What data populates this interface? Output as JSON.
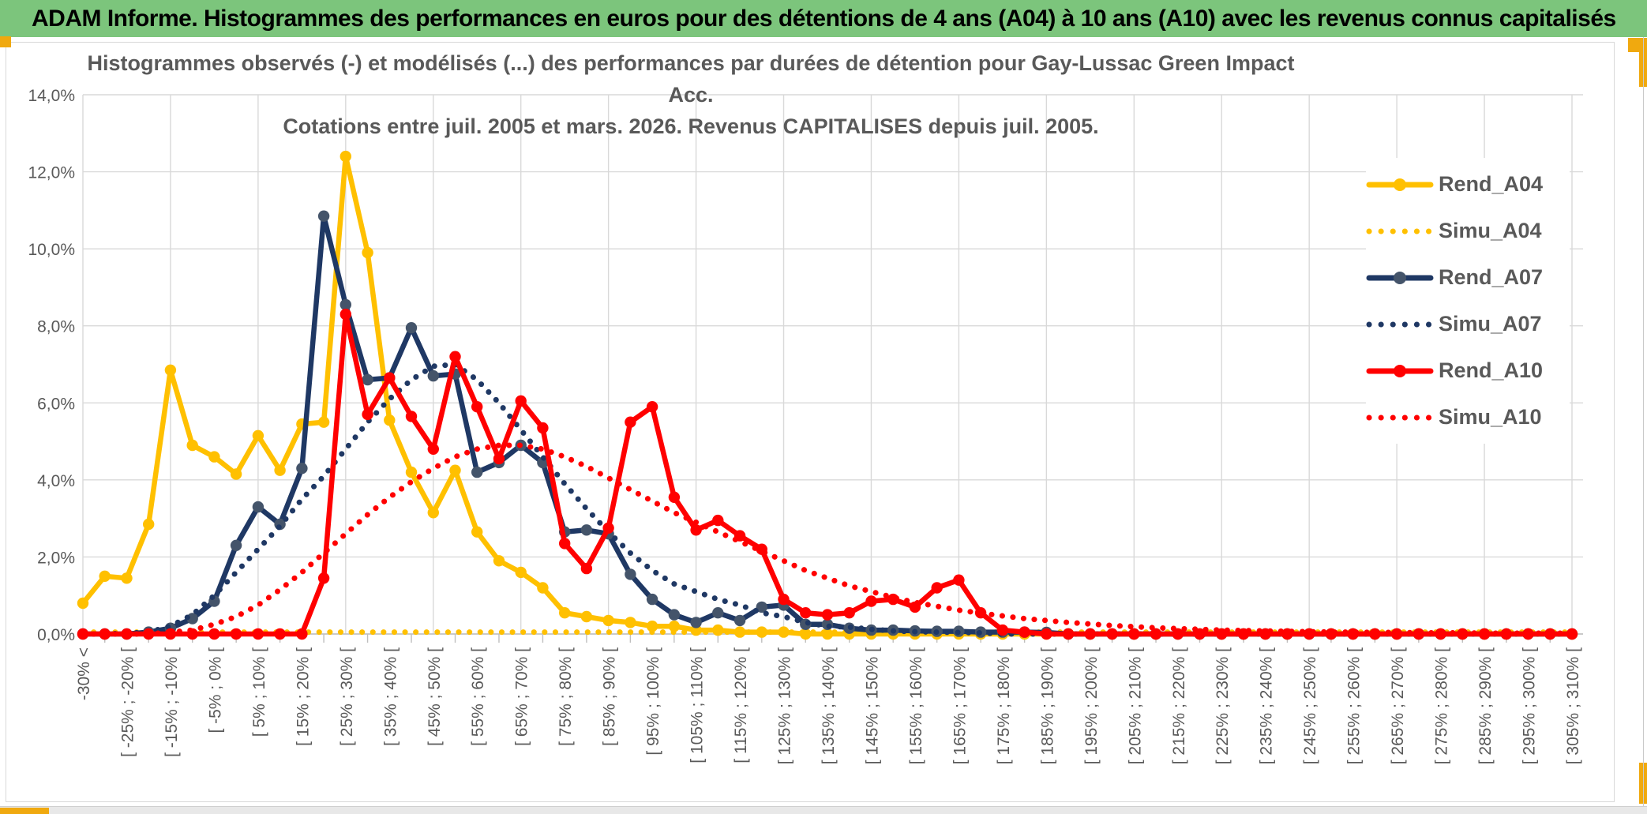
{
  "colors": {
    "header_bg": "#7CC57C",
    "header_text": "#000000",
    "title_text": "#595959",
    "axis_text": "#595959",
    "gridline": "#D9D9D9",
    "axis_line": "#BFBFBF",
    "gold": "#FFC000",
    "navy": "#1F3864",
    "navy_marker": "#44546A",
    "red": "#FF0000",
    "selection_accent": "#F0A90F"
  },
  "header": {
    "title": "ADAM Informe. Histogrammes des performances en euros pour des détentions de 4 ans (A04) à 10 ans (A10) avec les revenus connus capitalisés"
  },
  "chart": {
    "title_line1": "Histogrammes observés (-) et modélisés (...) des performances par durées de détention pour Gay-Lussac Green Impact Acc.",
    "title_line2": "Cotations entre juil. 2005 et mars. 2026. Revenus CAPITALISES depuis juil. 2005.",
    "legend": [
      {
        "label": "Rend_A04",
        "color": "#FFC000",
        "marker": "#FFC000",
        "dotted": false
      },
      {
        "label": "Simu_A04",
        "color": "#FFC000",
        "marker": "#FFC000",
        "dotted": true
      },
      {
        "label": "Rend_A07",
        "color": "#1F3864",
        "marker": "#44546A",
        "dotted": false
      },
      {
        "label": "Simu_A07",
        "color": "#1F3864",
        "marker": "#1F3864",
        "dotted": true
      },
      {
        "label": "Rend_A10",
        "color": "#FF0000",
        "marker": "#FF0000",
        "dotted": false
      },
      {
        "label": "Simu_A10",
        "color": "#FF0000",
        "marker": "#FF0000",
        "dotted": true
      }
    ]
  },
  "chart_data": {
    "type": "line",
    "title": "Histogrammes observés (-) et modélisés (...) des performances par durées de détention pour Gay-Lussac Green Impact Acc. Cotations entre juil. 2005 et mars. 2026. Revenus CAPITALISES depuis juil. 2005.",
    "ylabel": "",
    "xlabel": "",
    "ylim": [
      0,
      14
    ],
    "y_tick_labels": [
      "0,0%",
      "2,0%",
      "4,0%",
      "6,0%",
      "8,0%",
      "10,0%",
      "12,0%",
      "14,0%"
    ],
    "grid": true,
    "legend_position": "right",
    "n_bins": 69,
    "label_interval": 2,
    "x_visible_labels": [
      "-30% <",
      "[ -25% ; -20% [",
      "[ -15% ; -10% [",
      "[ -5% ; 0% [",
      "[ 5% ; 10% [",
      "[ 15% ; 20% [",
      "[ 25% ; 30% [",
      "[ 35% ; 40% [",
      "[ 45% ; 50% [",
      "[ 55% ; 60% [",
      "[ 65% ; 70% [",
      "[ 75% ; 80% [",
      "[ 85% ; 90% [",
      "[ 95% ; 100% [",
      "[ 105% ; 110% [",
      "[ 115% ; 120% [",
      "[ 125% ; 130% [",
      "[ 135% ; 140% [",
      "[ 145% ; 150% [",
      "[ 155% ; 160% [",
      "[ 165% ; 170% [",
      "[ 175% ; 180% [",
      "[ 185% ; 190% [",
      "[ 195% ; 200% [",
      "[ 205% ; 210% [",
      "[ 215% ; 220% [",
      "[ 225% ; 230% [",
      "[ 235% ; 240% [",
      "[ 245% ; 250% [",
      "[ 255% ; 260% [",
      "[ 265% ; 270% [",
      "[ 275% ; 280% [",
      "[ 285% ; 290% [",
      "[ 295% ; 300% [",
      "[ 305% ; 310% ["
    ],
    "series": [
      {
        "name": "Rend_A04",
        "style": "solid",
        "color": "#FFC000",
        "marker_color": "#FFC000",
        "values": [
          0.8,
          1.5,
          1.45,
          2.85,
          6.85,
          4.9,
          4.6,
          4.15,
          5.15,
          4.25,
          5.45,
          5.5,
          12.4,
          9.9,
          5.55,
          4.2,
          3.15,
          4.25,
          2.65,
          1.9,
          1.6,
          1.2,
          0.55,
          0.45,
          0.35,
          0.3,
          0.2,
          0.2,
          0.1,
          0.1,
          0.05,
          0.05,
          0.05,
          0,
          0,
          0,
          0,
          0,
          0,
          0,
          0,
          0,
          0,
          0,
          0,
          0,
          0,
          0,
          0,
          0,
          0,
          0,
          0,
          0,
          0,
          0,
          0,
          0,
          0,
          0,
          0,
          0,
          0,
          0,
          0,
          0,
          0,
          0,
          0
        ]
      },
      {
        "name": "Simu_A04",
        "style": "dotted",
        "color": "#FFC000",
        "marker_color": "#FFC000",
        "values": [
          0.05,
          0.05,
          0.05,
          0.05,
          0.05,
          0.05,
          0.05,
          0.05,
          0.05,
          0.05,
          0.05,
          0.05,
          0.05,
          0.05,
          0.05,
          0.05,
          0.05,
          0.05,
          0.05,
          0.05,
          0.05,
          0.05,
          0.05,
          0.05,
          0.05,
          0.05,
          0.05,
          0.05,
          0.05,
          0.05,
          0.05,
          0.05,
          0.05,
          0.05,
          0.05,
          0.05,
          0.05,
          0.05,
          0.05,
          0.05,
          0.05,
          0.05,
          0.05,
          0.05,
          0.05,
          0.05,
          0.05,
          0.05,
          0.05,
          0.05,
          0.05,
          0.05,
          0.05,
          0.05,
          0.05,
          0.05,
          0.05,
          0.05,
          0.05,
          0.05,
          0.05,
          0.05,
          0.05,
          0.05,
          0.05,
          0.05,
          0.05,
          0.05,
          0.05
        ]
      },
      {
        "name": "Rend_A07",
        "style": "solid",
        "color": "#1F3864",
        "marker_color": "#44546A",
        "values": [
          0,
          0,
          0,
          0.05,
          0.15,
          0.4,
          0.85,
          2.3,
          3.3,
          2.85,
          4.3,
          10.85,
          8.55,
          6.6,
          6.65,
          7.95,
          6.7,
          6.75,
          4.2,
          4.45,
          4.9,
          4.45,
          2.65,
          2.7,
          2.6,
          1.55,
          0.9,
          0.5,
          0.3,
          0.55,
          0.35,
          0.7,
          0.75,
          0.25,
          0.25,
          0.15,
          0.1,
          0.1,
          0.08,
          0.07,
          0.07,
          0.05,
          0.05,
          0.05,
          0.04,
          0,
          0,
          0,
          0,
          0,
          0,
          0,
          0,
          0,
          0,
          0,
          0,
          0,
          0,
          0,
          0,
          0,
          0,
          0,
          0,
          0,
          0,
          0,
          0
        ]
      },
      {
        "name": "Simu_A07",
        "style": "dotted",
        "color": "#1F3864",
        "marker_color": "#1F3864",
        "values": [
          0,
          0,
          0.02,
          0.05,
          0.2,
          0.5,
          1.0,
          1.6,
          2.2,
          2.8,
          3.5,
          4.1,
          4.8,
          5.5,
          6.1,
          6.6,
          6.95,
          7.0,
          6.6,
          6.0,
          5.3,
          4.6,
          3.9,
          3.25,
          2.65,
          2.1,
          1.65,
          1.3,
          1.1,
          0.9,
          0.75,
          0.55,
          0.45,
          0.3,
          0.2,
          0.18,
          0.12,
          0.08,
          0.06,
          0.05,
          0.04,
          0.03,
          0,
          0,
          0,
          0,
          0,
          0,
          0,
          0,
          0,
          0,
          0,
          0,
          0,
          0,
          0,
          0,
          0,
          0,
          0,
          0,
          0,
          0,
          0,
          0,
          0,
          0,
          0
        ]
      },
      {
        "name": "Rend_A10",
        "style": "solid",
        "color": "#FF0000",
        "marker_color": "#FF0000",
        "values": [
          0,
          0,
          0,
          0,
          0,
          0,
          0,
          0,
          0,
          0,
          0,
          1.45,
          8.3,
          5.7,
          6.65,
          5.65,
          4.8,
          7.2,
          5.9,
          4.55,
          6.05,
          5.35,
          2.35,
          1.7,
          2.75,
          5.5,
          5.9,
          3.55,
          2.7,
          2.95,
          2.55,
          2.2,
          0.9,
          0.55,
          0.5,
          0.55,
          0.85,
          0.9,
          0.7,
          1.2,
          1.4,
          0.55,
          0.1,
          0.05,
          0,
          0,
          0,
          0,
          0,
          0,
          0,
          0,
          0,
          0,
          0,
          0,
          0,
          0,
          0,
          0,
          0,
          0,
          0,
          0,
          0,
          0,
          0,
          0,
          0
        ]
      },
      {
        "name": "Simu_A10",
        "style": "dotted",
        "color": "#FF0000",
        "marker_color": "#FF0000",
        "values": [
          0,
          0,
          0,
          0,
          0.05,
          0.1,
          0.25,
          0.45,
          0.75,
          1.15,
          1.6,
          2.1,
          2.6,
          3.1,
          3.55,
          3.95,
          4.3,
          4.6,
          4.8,
          4.9,
          4.9,
          4.8,
          4.6,
          4.35,
          4.05,
          3.75,
          3.45,
          3.15,
          2.9,
          2.65,
          2.4,
          2.15,
          1.9,
          1.65,
          1.45,
          1.25,
          1.1,
          0.95,
          0.82,
          0.72,
          0.62,
          0.54,
          0.47,
          0.4,
          0.35,
          0.3,
          0.26,
          0.22,
          0.19,
          0.16,
          0.14,
          0.12,
          0.1,
          0.09,
          0.08,
          0.07,
          0.06,
          0.05,
          0.05,
          0.04,
          0.04,
          0.03,
          0.03,
          0.03,
          0.02,
          0.02,
          0.02,
          0.02,
          0.02
        ]
      }
    ]
  }
}
